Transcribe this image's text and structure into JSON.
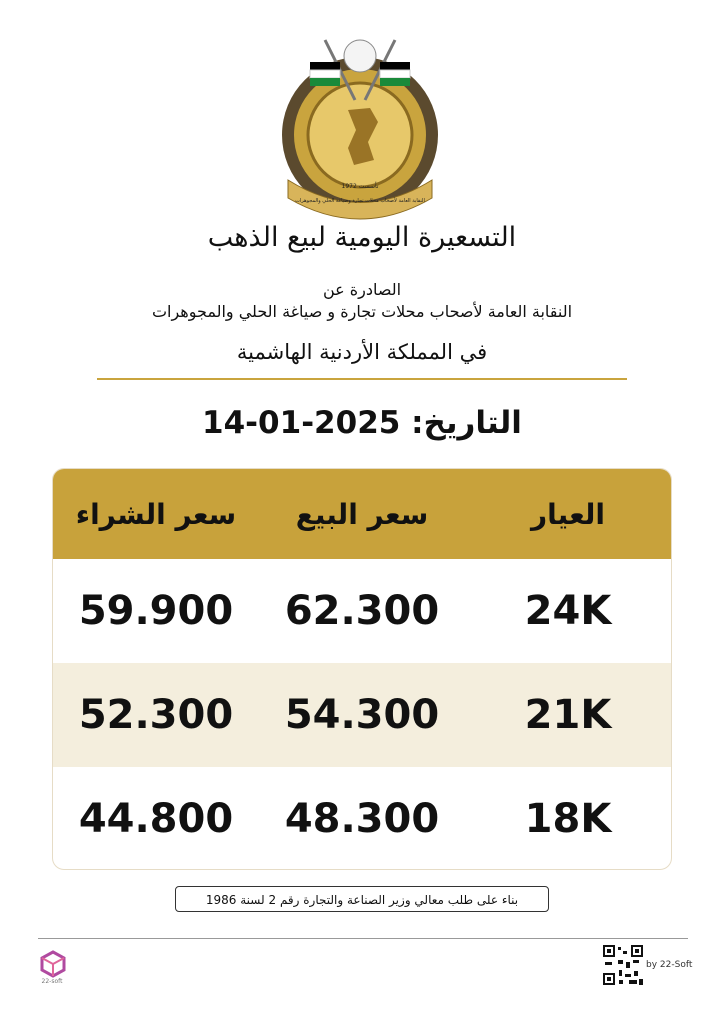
{
  "logo": {
    "founded": "تأسست 1972",
    "name": "النقابة العامة لأصحاب محلات تجارة وصياغة الحلي والمجوهرات"
  },
  "header": {
    "title": "التسعيرة اليومية لبيع الذهب",
    "issued_by": "الصادرة عن",
    "union": "النقابة العامة لأصحاب محلات تجارة و صياغة الحلي والمجوهرات",
    "country": "في المملكة الأردنية الهاشمية",
    "date_label": "التاريخ:",
    "date": "14-01-2025"
  },
  "table": {
    "columns": [
      "العيار",
      "سعر البيع",
      "سعر الشراء"
    ],
    "rows": [
      [
        "24K",
        "62.300",
        "59.900"
      ],
      [
        "21K",
        "54.300",
        "52.300"
      ],
      [
        "18K",
        "48.300",
        "44.800"
      ]
    ]
  },
  "note": "بناء على طلب معالي وزير الصناعة والتجارة رقم 2 لسنة 1986",
  "footer": {
    "brand_small": "22-soft",
    "credit": "by 22-Soft"
  }
}
